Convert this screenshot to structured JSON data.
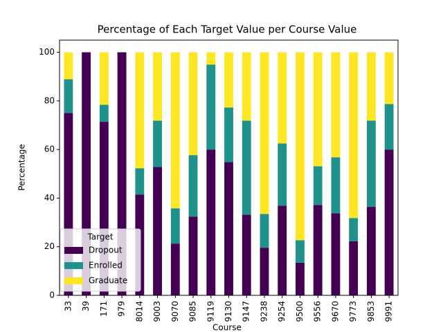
{
  "chart_data": {
    "type": "stacked_bar",
    "title": "Percentage of Each Target Value per Course Value",
    "xlabel": "Course",
    "ylabel": "Percentage",
    "categories": [
      "33",
      "39",
      "171",
      "979",
      "8014",
      "9003",
      "9070",
      "9085",
      "9119",
      "9130",
      "9147",
      "9238",
      "9254",
      "9500",
      "9556",
      "9670",
      "9773",
      "9853",
      "9991"
    ],
    "series": [
      {
        "name": "Dropout",
        "color": "#440154",
        "values": [
          75.0,
          100,
          71.4,
          100,
          41.5,
          52.8,
          21.3,
          32.4,
          59.9,
          54.8,
          33.2,
          19.6,
          36.9,
          13.4,
          37.2,
          33.8,
          22.2,
          36.4,
          59.9
        ]
      },
      {
        "name": "Enrolled",
        "color": "#21918c",
        "values": [
          13.9,
          0,
          7.0,
          0,
          10.8,
          19.1,
          14.5,
          25.3,
          35.0,
          22.5,
          38.7,
          13.9,
          25.6,
          9.3,
          15.9,
          23.0,
          9.6,
          35.5,
          18.8
        ]
      },
      {
        "name": "Graduate",
        "color": "#fde725",
        "values": [
          11.1,
          0,
          21.6,
          0,
          47.7,
          28.1,
          64.2,
          42.3,
          5.1,
          22.7,
          28.1,
          66.5,
          37.5,
          77.3,
          46.9,
          43.2,
          68.2,
          28.1,
          21.3
        ]
      }
    ],
    "ylim": [
      0,
      105
    ],
    "yticks": [
      0,
      20,
      40,
      60,
      80,
      100
    ],
    "legend": {
      "title": "Target",
      "position": "lower left"
    }
  }
}
